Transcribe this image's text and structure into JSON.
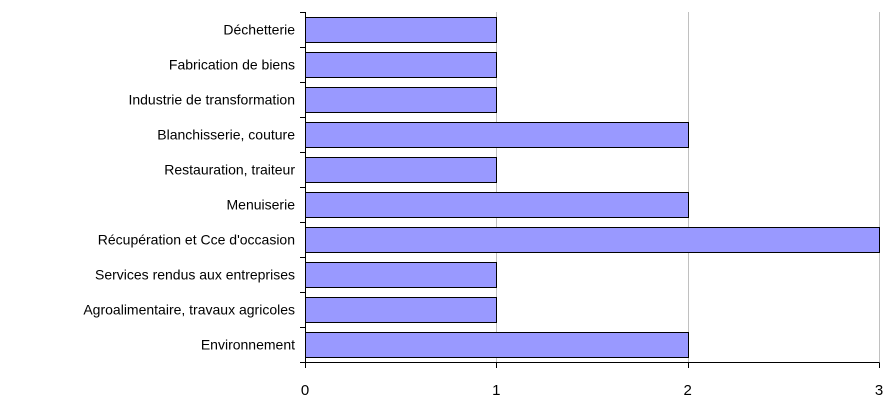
{
  "chart_data": {
    "type": "bar",
    "orientation": "horizontal",
    "categories": [
      "Déchetterie",
      "Fabrication de biens",
      "Industrie de transformation",
      "Blanchisserie, couture",
      "Restauration, traiteur",
      "Menuiserie",
      "Récupération et Cce d'occasion",
      "Services rendus aux entreprises",
      "Agroalimentaire, travaux agricoles",
      "Environnement"
    ],
    "values": [
      1,
      1,
      1,
      2,
      1,
      2,
      3,
      1,
      1,
      2
    ],
    "title": "",
    "xlabel": "",
    "ylabel": "",
    "xlim": [
      0,
      3
    ],
    "xticks": [
      0,
      1,
      2,
      3
    ],
    "xtick_labels": [
      "0",
      "1",
      "2",
      "3"
    ],
    "grid": "vertical",
    "legend": "none",
    "colors": {
      "bar_fill": "#9999ff",
      "bar_stroke": "#000000",
      "grid": "#c0c0c0",
      "axis": "#000000"
    }
  }
}
